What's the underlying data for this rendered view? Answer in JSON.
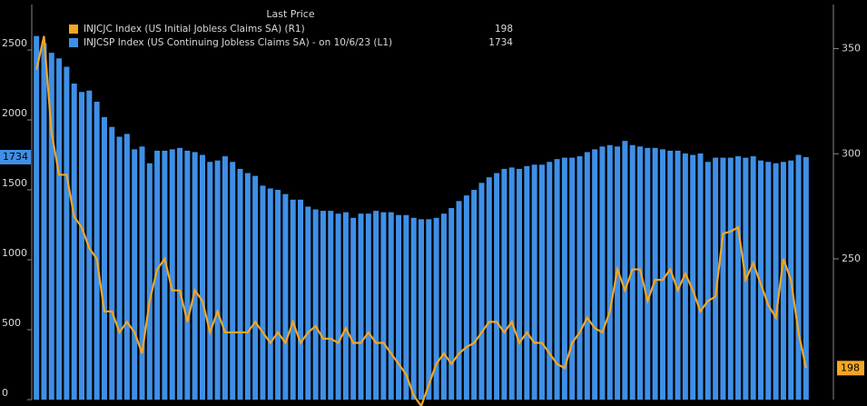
{
  "chart_data": {
    "type": "bar-line",
    "legend_title": "Last Price",
    "categories": [
      null,
      null,
      null,
      null,
      null,
      null,
      null,
      null,
      null,
      null,
      null,
      null,
      null,
      null,
      null,
      null,
      null,
      null,
      null,
      null,
      null,
      null,
      null,
      null,
      null,
      null,
      null,
      null,
      null,
      null,
      null,
      null,
      null,
      null,
      null,
      null,
      null,
      null,
      null,
      null,
      null,
      null,
      null,
      null,
      null,
      null,
      null,
      null,
      null,
      null,
      null,
      null,
      null,
      null,
      null,
      null,
      null,
      null,
      null,
      null,
      null,
      null,
      null,
      null,
      null,
      null,
      null,
      null,
      null,
      null,
      null,
      null,
      null,
      null,
      null,
      null,
      null,
      null,
      null,
      null,
      null,
      null,
      null,
      null,
      null,
      null,
      null,
      null,
      null,
      null,
      null,
      null,
      null,
      null,
      null,
      null,
      null,
      null,
      null,
      null,
      null,
      null,
      null
    ],
    "series": [
      {
        "name": "INJCJC Index (US Initial Jobless Claims SA)  (R1)",
        "color": "#f5a623",
        "axis": "y2",
        "last_value": 198,
        "values": [
          340,
          356,
          310,
          290,
          290,
          270,
          265,
          255,
          250,
          225,
          225,
          215,
          220,
          215,
          205,
          230,
          245,
          250,
          235,
          235,
          220,
          235,
          230,
          215,
          225,
          215,
          215,
          215,
          215,
          220,
          215,
          210,
          215,
          210,
          220,
          210,
          215,
          218,
          212,
          212,
          210,
          217,
          210,
          210,
          215,
          210,
          210,
          205,
          200,
          195,
          185,
          180,
          190,
          200,
          205,
          200,
          205,
          208,
          210,
          215,
          220,
          220,
          215,
          220,
          210,
          215,
          210,
          210,
          205,
          200,
          198,
          210,
          215,
          222,
          217,
          215,
          225,
          245,
          235,
          245,
          245,
          230,
          240,
          240,
          245,
          235,
          243,
          235,
          225,
          230,
          232,
          262,
          263,
          265,
          240,
          248,
          238,
          228,
          222,
          250,
          240,
          215,
          198
        ]
      },
      {
        "name": "INJCSP Index (US Continuing Jobless Claims SA) - on 10/6/23  (L1)",
        "color": "#3f8fe6",
        "last_value": 1734,
        "values": [
          2600,
          2550,
          2480,
          2440,
          2380,
          2260,
          2200,
          2210,
          2130,
          2020,
          1950,
          1880,
          1900,
          1790,
          1810,
          1690,
          1780,
          1780,
          1790,
          1800,
          1780,
          1770,
          1750,
          1700,
          1710,
          1740,
          1700,
          1650,
          1620,
          1600,
          1530,
          1510,
          1500,
          1470,
          1430,
          1430,
          1380,
          1360,
          1350,
          1350,
          1330,
          1340,
          1300,
          1330,
          1330,
          1350,
          1340,
          1340,
          1320,
          1320,
          1300,
          1290,
          1290,
          1300,
          1330,
          1370,
          1420,
          1460,
          1500,
          1550,
          1590,
          1620,
          1650,
          1660,
          1650,
          1670,
          1680,
          1680,
          1700,
          1720,
          1730,
          1730,
          1740,
          1770,
          1790,
          1810,
          1820,
          1810,
          1850,
          1820,
          1810,
          1800,
          1800,
          1790,
          1780,
          1780,
          1760,
          1750,
          1760,
          1700,
          1730,
          1730,
          1730,
          1740,
          1730,
          1740,
          1710,
          1700,
          1690,
          1700,
          1710,
          1750,
          1734
        ]
      }
    ],
    "ylim": [
      0,
      2825
    ],
    "yticks": [
      0,
      500,
      1000,
      1500,
      2000,
      2500
    ],
    "y2lim": [
      183,
      371
    ],
    "y2ticks": [
      250,
      300,
      350
    ]
  }
}
